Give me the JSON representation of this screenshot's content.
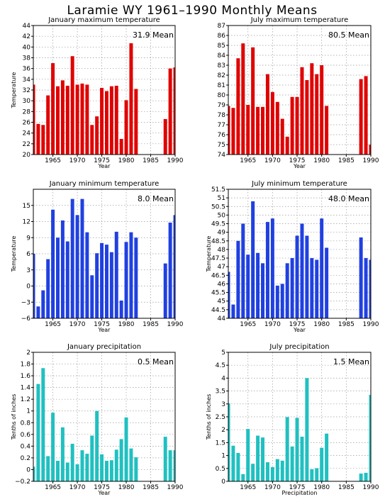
{
  "page": {
    "title": "Laramie WY   1961–1990 Monthly Means"
  },
  "chart_data": [
    {
      "type": "bar",
      "title": "January maximum temperature",
      "mean_label": "31.9 Mean",
      "xlabel": "Year",
      "ylabel": "Temperature",
      "color": "#e00000",
      "ylim": [
        20,
        44
      ],
      "yticks": [
        20,
        22,
        24,
        26,
        28,
        30,
        32,
        34,
        36,
        38,
        40,
        42,
        44
      ],
      "ytick_labels": [
        "20",
        "22",
        "24",
        "26",
        "28",
        "30",
        "32",
        "34",
        "36",
        "38",
        "40",
        "42",
        "44"
      ],
      "xlim": [
        1961,
        1990
      ],
      "xticks": [
        1965,
        1970,
        1975,
        1980,
        1985,
        1990
      ],
      "xtick_labels": [
        "1965",
        "1970",
        "1975",
        "1980",
        "1985",
        "1990"
      ],
      "years": [
        1961,
        1962,
        1963,
        1964,
        1965,
        1966,
        1967,
        1968,
        1969,
        1970,
        1971,
        1972,
        1973,
        1974,
        1975,
        1976,
        1977,
        1978,
        1979,
        1980,
        1981,
        1982,
        1983,
        1984,
        1985,
        1986,
        1987,
        1988,
        1989,
        1990
      ],
      "values": [
        33.0,
        25.7,
        25.5,
        31.0,
        37.0,
        32.7,
        33.8,
        32.8,
        38.3,
        33.0,
        33.2,
        33.0,
        25.5,
        27.1,
        32.4,
        31.8,
        32.7,
        32.8,
        22.9,
        30.1,
        40.7,
        32.2,
        null,
        null,
        null,
        null,
        null,
        26.6,
        36.0,
        36.2
      ]
    },
    {
      "type": "bar",
      "title": "July maximum temperature",
      "mean_label": "80.5 Mean",
      "xlabel": "Year",
      "ylabel": "",
      "color": "#e00000",
      "ylim": [
        74,
        87
      ],
      "yticks": [
        74,
        75,
        76,
        77,
        78,
        79,
        80,
        81,
        82,
        83,
        84,
        85,
        86,
        87
      ],
      "ytick_labels": [
        "74",
        "75",
        "76",
        "77",
        "78",
        "79",
        "80",
        "81",
        "82",
        "83",
        "84",
        "85",
        "86",
        "87"
      ],
      "xlim": [
        1961,
        1990
      ],
      "xticks": [
        1965,
        1970,
        1975,
        1980,
        1985,
        1990
      ],
      "xtick_labels": [
        "1965",
        "1970",
        "1975",
        "1980",
        "1985",
        "1990"
      ],
      "years": [
        1961,
        1962,
        1963,
        1964,
        1965,
        1966,
        1967,
        1968,
        1969,
        1970,
        1971,
        1972,
        1973,
        1974,
        1975,
        1976,
        1977,
        1978,
        1979,
        1980,
        1981,
        1982,
        1983,
        1984,
        1985,
        1986,
        1987,
        1988,
        1989,
        1990
      ],
      "values": [
        78.9,
        78.7,
        83.7,
        85.2,
        79.0,
        84.8,
        78.8,
        78.8,
        82.1,
        80.3,
        79.3,
        77.6,
        75.8,
        79.8,
        79.8,
        82.8,
        81.5,
        83.2,
        82.1,
        83.0,
        78.9,
        null,
        null,
        null,
        null,
        null,
        null,
        81.6,
        81.9,
        75.0
      ]
    },
    {
      "type": "bar",
      "title": "January minimum temperature",
      "mean_label": "8.0 Mean",
      "xlabel": "Year",
      "ylabel": "Temperature",
      "color": "#2040e0",
      "ylim": [
        -6,
        18
      ],
      "yticks": [
        -6,
        -3,
        0,
        3,
        6,
        9,
        12,
        15
      ],
      "ytick_labels": [
        "−6",
        "−3",
        "0",
        "3",
        "6",
        "9",
        "12",
        "15"
      ],
      "xlim": [
        1961,
        1990
      ],
      "xticks": [
        1965,
        1970,
        1975,
        1980,
        1985,
        1990
      ],
      "xtick_labels": [
        "1965",
        "1970",
        "1975",
        "1980",
        "1985",
        "1990"
      ],
      "years": [
        1961,
        1962,
        1963,
        1964,
        1965,
        1966,
        1967,
        1968,
        1969,
        1970,
        1971,
        1972,
        1973,
        1974,
        1975,
        1976,
        1977,
        1978,
        1979,
        1980,
        1981,
        1982,
        1983,
        1984,
        1985,
        1986,
        1987,
        1988,
        1989,
        1990
      ],
      "values": [
        6.0,
        -3.8,
        -0.8,
        5.0,
        14.2,
        9.0,
        12.2,
        8.3,
        16.2,
        13.2,
        16.2,
        10.0,
        2.0,
        6.1,
        8.0,
        7.7,
        6.3,
        10.1,
        -2.7,
        8.2,
        10.0,
        9.0,
        null,
        null,
        null,
        null,
        null,
        4.2,
        11.8,
        13.2
      ]
    },
    {
      "type": "bar",
      "title": "July minimum temperature",
      "mean_label": "48.0 Mean",
      "xlabel": "Year",
      "ylabel": "Temperature",
      "color": "#2040e0",
      "ylim": [
        44,
        51.5
      ],
      "yticks": [
        44,
        44.5,
        45,
        45.5,
        46,
        46.5,
        47,
        47.5,
        48,
        48.5,
        49,
        49.5,
        50,
        50.5,
        51,
        51.5
      ],
      "ytick_labels": [
        "44",
        "44.5",
        "45",
        "45.5",
        "46",
        "46.5",
        "47",
        "47.5",
        "48",
        "48.5",
        "49",
        "49.5",
        "50",
        "50.5",
        "51",
        "51.5"
      ],
      "xlim": [
        1961,
        1990
      ],
      "xticks": [
        1965,
        1970,
        1975,
        1980,
        1985,
        1990
      ],
      "xtick_labels": [
        "1965",
        "1970",
        "1975",
        "1980",
        "1985",
        "1990"
      ],
      "years": [
        1961,
        1962,
        1963,
        1964,
        1965,
        1966,
        1967,
        1968,
        1969,
        1970,
        1971,
        1972,
        1973,
        1974,
        1975,
        1976,
        1977,
        1978,
        1979,
        1980,
        1981,
        1982,
        1983,
        1984,
        1985,
        1986,
        1987,
        1988,
        1989,
        1990
      ],
      "values": [
        46.7,
        44.8,
        48.5,
        49.5,
        47.7,
        50.8,
        47.8,
        47.2,
        49.6,
        49.8,
        45.9,
        46.0,
        47.2,
        47.5,
        48.8,
        49.5,
        48.8,
        47.5,
        47.4,
        49.8,
        48.1,
        null,
        null,
        null,
        null,
        null,
        null,
        48.7,
        47.5,
        47.4
      ]
    },
    {
      "type": "bar",
      "title": "January precipitation",
      "mean_label": "0.5 Mean",
      "xlabel": "Year",
      "ylabel": "Tenths of inches",
      "color": "#20c0c0",
      "ylim": [
        -0.2,
        2
      ],
      "yticks": [
        -0.2,
        0,
        0.2,
        0.4,
        0.6,
        0.8,
        1,
        1.2,
        1.4,
        1.6,
        1.8,
        2
      ],
      "ytick_labels": [
        "−0.2",
        "0",
        "0.2",
        "0.4",
        "0.6",
        "0.8",
        "1",
        "1.2",
        "1.4",
        "1.6",
        "1.8",
        "2"
      ],
      "xlim": [
        1961,
        1990
      ],
      "xticks": [
        1965,
        1970,
        1975,
        1980,
        1985,
        1990
      ],
      "xtick_labels": [
        "1965",
        "1970",
        "1975",
        "1980",
        "1985",
        "1990"
      ],
      "years": [
        1961,
        1962,
        1963,
        1964,
        1965,
        1966,
        1967,
        1968,
        1969,
        1970,
        1971,
        1972,
        1973,
        1974,
        1975,
        1976,
        1977,
        1978,
        1979,
        1980,
        1981,
        1982,
        1983,
        1984,
        1985,
        1986,
        1987,
        1988,
        1989,
        1990
      ],
      "values": [
        0.05,
        1.46,
        1.73,
        0.23,
        0.97,
        0.15,
        0.72,
        0.12,
        0.44,
        0.09,
        0.33,
        0.27,
        0.58,
        1.0,
        0.26,
        0.15,
        0.16,
        0.34,
        0.52,
        0.89,
        0.36,
        0.21,
        null,
        null,
        null,
        null,
        null,
        0.56,
        0.33,
        0.33
      ]
    },
    {
      "type": "bar",
      "title": "July precipitation",
      "mean_label": "1.5 Mean",
      "xlabel": "Precipitation",
      "ylabel": "Tenths of inches",
      "color": "#20c0c0",
      "ylim": [
        0,
        5
      ],
      "yticks": [
        0,
        0.5,
        1,
        1.5,
        2,
        2.5,
        3,
        3.5,
        4,
        4.5,
        5
      ],
      "ytick_labels": [
        "0",
        "0.5",
        "1",
        "1.5",
        "2",
        "2.5",
        "3",
        "3.5",
        "4",
        "4.5",
        "5"
      ],
      "xlim": [
        1961,
        1990
      ],
      "xticks": [
        1965,
        1970,
        1975,
        1980,
        1985,
        1990
      ],
      "xtick_labels": [
        "1965",
        "1970",
        "1975",
        "1980",
        "1985",
        "1990"
      ],
      "years": [
        1961,
        1962,
        1963,
        1964,
        1965,
        1966,
        1967,
        1968,
        1969,
        1970,
        1971,
        1972,
        1973,
        1974,
        1975,
        1976,
        1977,
        1978,
        1979,
        1980,
        1981,
        1982,
        1983,
        1984,
        1985,
        1986,
        1987,
        1988,
        1989,
        1990
      ],
      "values": [
        3.02,
        1.38,
        1.1,
        0.28,
        2.03,
        0.68,
        1.77,
        1.7,
        0.74,
        0.55,
        0.86,
        0.8,
        2.49,
        1.35,
        2.46,
        1.73,
        4.0,
        0.47,
        0.51,
        1.3,
        1.85,
        null,
        null,
        null,
        null,
        null,
        null,
        0.3,
        0.33,
        3.35
      ]
    }
  ]
}
